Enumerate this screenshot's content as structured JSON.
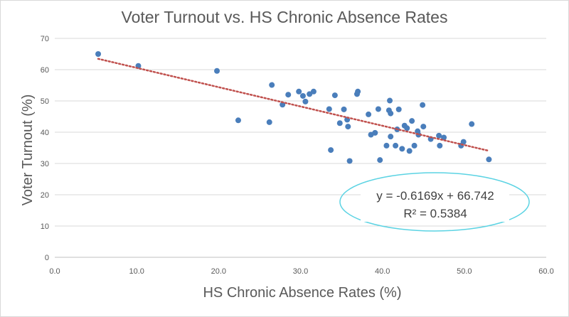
{
  "chart_data": {
    "type": "scatter",
    "title": "Voter Turnout vs. HS Chronic Absence Rates",
    "xlabel": "HS Chronic Absence Rates (%)",
    "ylabel": "Voter Turnout (%)",
    "xlim": [
      0,
      60
    ],
    "ylim": [
      0,
      70
    ],
    "x_ticks": [
      "0.0",
      "10.0",
      "20.0",
      "30.0",
      "40.0",
      "50.0",
      "60.0"
    ],
    "y_ticks": [
      "0",
      "10",
      "20",
      "30",
      "40",
      "50",
      "60",
      "70"
    ],
    "grid": "horizontal",
    "legend": "none",
    "marker_color": "#4a7ebb",
    "trendline": {
      "type": "linear",
      "slope": -0.6169,
      "intercept": 66.742,
      "x_range": [
        5.3,
        53.0
      ],
      "color": "#c0504d",
      "style": "dotted",
      "equation_label": "y = -0.6169x + 66.742",
      "r2_label": "R² = 0.5384",
      "highlight_color": "#5bd3e3"
    },
    "points": [
      {
        "x": 5.3,
        "y": 65.0
      },
      {
        "x": 10.2,
        "y": 61.2
      },
      {
        "x": 19.8,
        "y": 59.6
      },
      {
        "x": 22.4,
        "y": 43.8
      },
      {
        "x": 26.2,
        "y": 43.2
      },
      {
        "x": 26.5,
        "y": 55.1
      },
      {
        "x": 27.8,
        "y": 48.8
      },
      {
        "x": 28.5,
        "y": 52.0
      },
      {
        "x": 29.8,
        "y": 53.0
      },
      {
        "x": 30.3,
        "y": 51.6
      },
      {
        "x": 30.6,
        "y": 49.8
      },
      {
        "x": 31.1,
        "y": 52.2
      },
      {
        "x": 31.6,
        "y": 53.0
      },
      {
        "x": 33.5,
        "y": 47.4
      },
      {
        "x": 33.7,
        "y": 34.3
      },
      {
        "x": 34.2,
        "y": 51.8
      },
      {
        "x": 34.8,
        "y": 42.9
      },
      {
        "x": 35.3,
        "y": 47.3
      },
      {
        "x": 35.7,
        "y": 44.0
      },
      {
        "x": 35.8,
        "y": 41.8
      },
      {
        "x": 36.0,
        "y": 30.8
      },
      {
        "x": 36.9,
        "y": 52.2
      },
      {
        "x": 37.0,
        "y": 53.0
      },
      {
        "x": 38.3,
        "y": 45.7
      },
      {
        "x": 38.6,
        "y": 39.2
      },
      {
        "x": 39.1,
        "y": 39.8
      },
      {
        "x": 39.5,
        "y": 47.4
      },
      {
        "x": 39.7,
        "y": 31.1
      },
      {
        "x": 40.5,
        "y": 35.7
      },
      {
        "x": 40.8,
        "y": 47.0
      },
      {
        "x": 40.9,
        "y": 50.1
      },
      {
        "x": 41.0,
        "y": 46.0
      },
      {
        "x": 41.0,
        "y": 38.6
      },
      {
        "x": 41.6,
        "y": 35.7
      },
      {
        "x": 41.8,
        "y": 40.9
      },
      {
        "x": 42.0,
        "y": 47.3
      },
      {
        "x": 42.4,
        "y": 34.7
      },
      {
        "x": 42.7,
        "y": 42.1
      },
      {
        "x": 43.0,
        "y": 41.3
      },
      {
        "x": 43.3,
        "y": 34.0
      },
      {
        "x": 43.6,
        "y": 43.6
      },
      {
        "x": 43.9,
        "y": 35.7
      },
      {
        "x": 44.3,
        "y": 40.3
      },
      {
        "x": 44.4,
        "y": 39.2
      },
      {
        "x": 44.9,
        "y": 48.7
      },
      {
        "x": 45.0,
        "y": 41.8
      },
      {
        "x": 45.9,
        "y": 37.8
      },
      {
        "x": 46.9,
        "y": 38.9
      },
      {
        "x": 47.0,
        "y": 35.7
      },
      {
        "x": 47.5,
        "y": 38.3
      },
      {
        "x": 49.6,
        "y": 35.7
      },
      {
        "x": 49.9,
        "y": 36.9
      },
      {
        "x": 50.9,
        "y": 42.6
      },
      {
        "x": 53.0,
        "y": 31.3
      }
    ]
  }
}
